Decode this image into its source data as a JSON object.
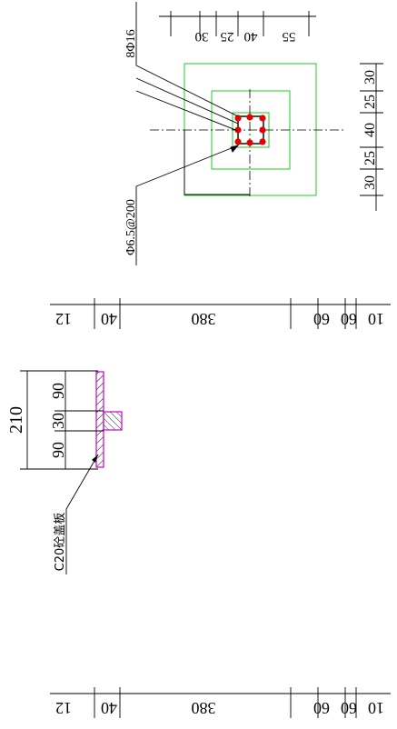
{
  "colors": {
    "outline": "#22cc22",
    "rebar": "#e60000",
    "stirrup": "#000000",
    "slab": "#cc00cc",
    "dimension": "#000000",
    "background": "#ffffff"
  },
  "section": {
    "main_rebar_label": "8Φ16",
    "stirrup_label": "Φ6.5@200",
    "top_dims": [
      "55",
      "40",
      "25",
      "30"
    ],
    "right_dims": [
      "30",
      "25",
      "40",
      "25",
      "30"
    ],
    "rebar_count": 8
  },
  "dim_row_1": [
    "10",
    "60",
    "60",
    "380",
    "40",
    "12"
  ],
  "slab_detail": {
    "dims": [
      "90",
      "30",
      "90"
    ],
    "total_dim": "210",
    "note": "C20砼盖板"
  },
  "dim_row_2": [
    "10",
    "60",
    "60",
    "380",
    "40",
    "12"
  ]
}
